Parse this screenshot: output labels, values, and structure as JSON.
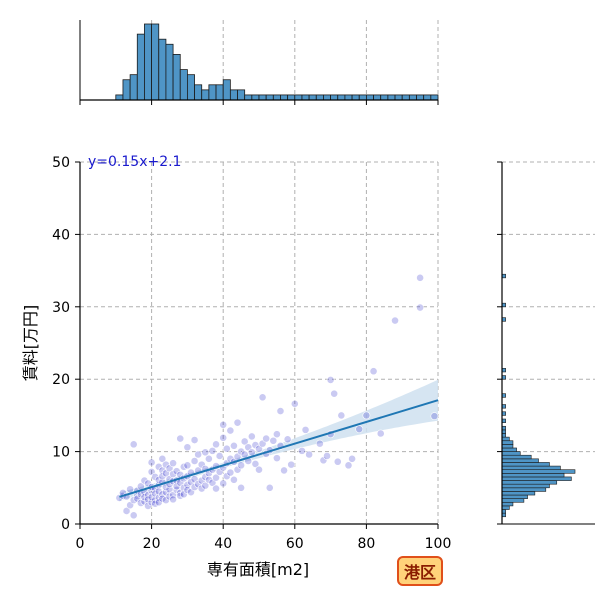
{
  "chart_data": {
    "type": "scatter",
    "xlabel": "専有面積[m2]",
    "ylabel": "賃料[万円]",
    "xlim": [
      0,
      100
    ],
    "ylim": [
      0,
      50
    ],
    "xticks": [
      0,
      20,
      40,
      60,
      80,
      100
    ],
    "yticks": [
      0,
      10,
      20,
      30,
      40,
      50
    ],
    "grid": true,
    "annotation": "y=0.15x+2.1",
    "regression": {
      "slope": 0.15,
      "intercept": 2.1,
      "x_range": [
        11,
        100
      ]
    },
    "badge": "港区",
    "colors": {
      "point": "#3f3fd0",
      "point_dense": "#1a1aa8",
      "line": "#1f77b4",
      "band": "#cfe0f0",
      "hist": "#4f95c6",
      "badge_fill": "#ffd27a",
      "badge_border": "#e0501a"
    },
    "points": [
      [
        11,
        3.6
      ],
      [
        12,
        3.9
      ],
      [
        12,
        4.3
      ],
      [
        13,
        3.8
      ],
      [
        13,
        1.8
      ],
      [
        14,
        2.6
      ],
      [
        14,
        4.8
      ],
      [
        15,
        1.2
      ],
      [
        15,
        11
      ],
      [
        15,
        3.3
      ],
      [
        16,
        3.9
      ],
      [
        16,
        4.6
      ],
      [
        16,
        3.5
      ],
      [
        17,
        2.9
      ],
      [
        17,
        4.1
      ],
      [
        17,
        5.2
      ],
      [
        18,
        3.1
      ],
      [
        18,
        4.4
      ],
      [
        18,
        6
      ],
      [
        18,
        3.7
      ],
      [
        19,
        2.5
      ],
      [
        19,
        4.0
      ],
      [
        19,
        5.6
      ],
      [
        19,
        3.4
      ],
      [
        20,
        3.0
      ],
      [
        20,
        4.6
      ],
      [
        20,
        7.2
      ],
      [
        20,
        8.5
      ],
      [
        20,
        5.1
      ],
      [
        20,
        3.7
      ],
      [
        21,
        3.3
      ],
      [
        21,
        4.9
      ],
      [
        21,
        6.5
      ],
      [
        21,
        4.2
      ],
      [
        21,
        2.8
      ],
      [
        22,
        3.6
      ],
      [
        22,
        5.4
      ],
      [
        22,
        7.9
      ],
      [
        22,
        4.5
      ],
      [
        22,
        6.1
      ],
      [
        22,
        3.0
      ],
      [
        23,
        4.1
      ],
      [
        23,
        5.8
      ],
      [
        23,
        7.4
      ],
      [
        23,
        9.0
      ],
      [
        23,
        3.5
      ],
      [
        23,
        6.6
      ],
      [
        24,
        4.4
      ],
      [
        24,
        5.1
      ],
      [
        24,
        7.0
      ],
      [
        24,
        3.3
      ],
      [
        24,
        8.2
      ],
      [
        25,
        4.8
      ],
      [
        25,
        6.2
      ],
      [
        25,
        5.5
      ],
      [
        25,
        3.8
      ],
      [
        25,
        7.7
      ],
      [
        26,
        4.0
      ],
      [
        26,
        5.9
      ],
      [
        26,
        6.9
      ],
      [
        26,
        8.4
      ],
      [
        26,
        3.4
      ],
      [
        27,
        4.7
      ],
      [
        27,
        6.0
      ],
      [
        27,
        7.3
      ],
      [
        27,
        5.2
      ],
      [
        28,
        4.3
      ],
      [
        28,
        5.7
      ],
      [
        28,
        6.8
      ],
      [
        28,
        11.8
      ],
      [
        28,
        3.9
      ],
      [
        29,
        5.0
      ],
      [
        29,
        6.3
      ],
      [
        29,
        7.9
      ],
      [
        29,
        4.1
      ],
      [
        30,
        5.4
      ],
      [
        30,
        6.6
      ],
      [
        30,
        10.6
      ],
      [
        30,
        8.1
      ],
      [
        30,
        4.7
      ],
      [
        31,
        5.8
      ],
      [
        31,
        7.1
      ],
      [
        31,
        4.4
      ],
      [
        32,
        6.2
      ],
      [
        32,
        8.7
      ],
      [
        32,
        5.1
      ],
      [
        32,
        11.6
      ],
      [
        33,
        5.5
      ],
      [
        33,
        7.4
      ],
      [
        33,
        9.6
      ],
      [
        34,
        6.0
      ],
      [
        34,
        8.2
      ],
      [
        34,
        4.9
      ],
      [
        35,
        6.5
      ],
      [
        35,
        9.9
      ],
      [
        35,
        7.6
      ],
      [
        35,
        5.3
      ],
      [
        36,
        7.0
      ],
      [
        36,
        9.0
      ],
      [
        36,
        6.1
      ],
      [
        37,
        7.5
      ],
      [
        37,
        10.1
      ],
      [
        37,
        5.7
      ],
      [
        38,
        8.0
      ],
      [
        38,
        6.4
      ],
      [
        38,
        11.0
      ],
      [
        38,
        4.9
      ],
      [
        39,
        7.2
      ],
      [
        39,
        9.4
      ],
      [
        40,
        7.8
      ],
      [
        40,
        13.7
      ],
      [
        40,
        5.6
      ],
      [
        40,
        11.9
      ],
      [
        41,
        8.4
      ],
      [
        41,
        6.6
      ],
      [
        41,
        10.4
      ],
      [
        42,
        9.0
      ],
      [
        42,
        7.1
      ],
      [
        42,
        12.9
      ],
      [
        43,
        8.6
      ],
      [
        43,
        10.8
      ],
      [
        43,
        6.1
      ],
      [
        44,
        9.3
      ],
      [
        44,
        7.5
      ],
      [
        44,
        14.0
      ],
      [
        45,
        10.0
      ],
      [
        45,
        8.1
      ],
      [
        45,
        5.0
      ],
      [
        46,
        9.6
      ],
      [
        46,
        11.4
      ],
      [
        47,
        8.7
      ],
      [
        47,
        10.6
      ],
      [
        48,
        9.9
      ],
      [
        48,
        12.1
      ],
      [
        49,
        8.3
      ],
      [
        49,
        10.9
      ],
      [
        50,
        10.4
      ],
      [
        50,
        7.5
      ],
      [
        51,
        11.1
      ],
      [
        51,
        17.5
      ],
      [
        52,
        9.7
      ],
      [
        52,
        11.8
      ],
      [
        53,
        5.0
      ],
      [
        53,
        10.2
      ],
      [
        54,
        11.5
      ],
      [
        55,
        9.1
      ],
      [
        55,
        12.4
      ],
      [
        56,
        10.8
      ],
      [
        56,
        15.6
      ],
      [
        57,
        7.4
      ],
      [
        58,
        11.7
      ],
      [
        59,
        8.2
      ],
      [
        60,
        16.6
      ],
      [
        62,
        10.1
      ],
      [
        63,
        13.0
      ],
      [
        64,
        9.6
      ],
      [
        67,
        11.1
      ],
      [
        68,
        8.8
      ],
      [
        69,
        9.4
      ],
      [
        70,
        12.4
      ],
      [
        70,
        19.9
      ],
      [
        71,
        18.0
      ],
      [
        72,
        8.6
      ],
      [
        73,
        15.0
      ],
      [
        75,
        8.1
      ],
      [
        76,
        9.0
      ],
      [
        78,
        13.1
      ],
      [
        80,
        15.0
      ],
      [
        82,
        21.1
      ],
      [
        84,
        12.5
      ],
      [
        88,
        28.1
      ],
      [
        95,
        34.0
      ],
      [
        95,
        29.9
      ],
      [
        99,
        14.9
      ]
    ],
    "hist_x": {
      "bins": [
        [
          10,
          12,
          1
        ],
        [
          12,
          14,
          4
        ],
        [
          14,
          16,
          5
        ],
        [
          16,
          18,
          13
        ],
        [
          18,
          20,
          15
        ],
        [
          20,
          22,
          15
        ],
        [
          22,
          24,
          12
        ],
        [
          24,
          26,
          11
        ],
        [
          26,
          28,
          9
        ],
        [
          28,
          30,
          6
        ],
        [
          30,
          32,
          5
        ],
        [
          32,
          34,
          3
        ],
        [
          34,
          36,
          2
        ],
        [
          36,
          38,
          3
        ],
        [
          38,
          40,
          3
        ],
        [
          40,
          42,
          4
        ],
        [
          42,
          44,
          2
        ],
        [
          44,
          46,
          2
        ],
        [
          46,
          48,
          1
        ],
        [
          48,
          50,
          1
        ],
        [
          50,
          52,
          1
        ],
        [
          52,
          54,
          1
        ],
        [
          54,
          56,
          1
        ],
        [
          56,
          58,
          1
        ],
        [
          58,
          60,
          1
        ],
        [
          60,
          62,
          1
        ],
        [
          62,
          64,
          1
        ],
        [
          64,
          66,
          1
        ],
        [
          66,
          68,
          1
        ],
        [
          68,
          70,
          1
        ],
        [
          70,
          72,
          1
        ],
        [
          72,
          74,
          1
        ],
        [
          74,
          76,
          1
        ],
        [
          76,
          78,
          1
        ],
        [
          78,
          80,
          1
        ],
        [
          80,
          82,
          1
        ],
        [
          82,
          84,
          1
        ],
        [
          84,
          86,
          1
        ],
        [
          86,
          88,
          1
        ],
        [
          88,
          90,
          1
        ],
        [
          90,
          92,
          1
        ],
        [
          92,
          94,
          1
        ],
        [
          94,
          96,
          1
        ],
        [
          96,
          98,
          1
        ],
        [
          98,
          100,
          1
        ]
      ]
    },
    "hist_y": {
      "bins": [
        [
          1,
          1.5,
          1
        ],
        [
          1.5,
          2,
          1
        ],
        [
          2,
          2.5,
          2
        ],
        [
          2.5,
          3,
          3
        ],
        [
          3,
          3.5,
          6
        ],
        [
          3.5,
          4,
          7
        ],
        [
          4,
          4.5,
          9
        ],
        [
          4.5,
          5,
          12
        ],
        [
          5,
          5.5,
          13
        ],
        [
          5.5,
          6,
          15
        ],
        [
          6,
          6.5,
          19
        ],
        [
          6.5,
          7,
          17
        ],
        [
          7,
          7.5,
          20
        ],
        [
          7.5,
          8,
          16
        ],
        [
          8,
          8.5,
          13
        ],
        [
          8.5,
          9,
          10
        ],
        [
          9,
          9.5,
          8
        ],
        [
          9.5,
          10,
          5
        ],
        [
          10,
          10.5,
          4
        ],
        [
          10.5,
          11,
          3
        ],
        [
          11,
          11.5,
          3
        ],
        [
          11.5,
          12,
          2
        ],
        [
          12,
          12.5,
          1
        ],
        [
          12.5,
          13,
          1
        ],
        [
          13,
          13.5,
          1
        ],
        [
          14,
          14.5,
          1
        ],
        [
          15,
          15.5,
          1
        ],
        [
          16,
          16.5,
          1
        ],
        [
          17.5,
          18,
          1
        ],
        [
          20,
          20.5,
          1
        ],
        [
          21,
          21.5,
          1
        ],
        [
          28,
          28.5,
          1
        ],
        [
          30,
          30.5,
          1
        ],
        [
          34,
          34.5,
          1
        ]
      ]
    }
  }
}
